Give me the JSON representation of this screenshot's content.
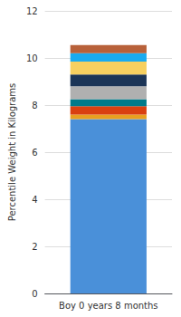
{
  "chart_data": {
    "type": "bar",
    "stacked": true,
    "categories": [
      "Boy 0 years 8 months"
    ],
    "series": [
      {
        "color": "#4A90D9",
        "values": [
          7.4
        ]
      },
      {
        "color": "#E8A020",
        "values": [
          0.2
        ]
      },
      {
        "color": "#D94010",
        "values": [
          0.35
        ]
      },
      {
        "color": "#007A8A",
        "values": [
          0.3
        ]
      },
      {
        "color": "#B0B0B0",
        "values": [
          0.55
        ]
      },
      {
        "color": "#1C3557",
        "values": [
          0.5
        ]
      },
      {
        "color": "#F7D060",
        "values": [
          0.55
        ]
      },
      {
        "color": "#1AABF0",
        "values": [
          0.35
        ]
      },
      {
        "color": "#B8613A",
        "values": [
          0.35
        ]
      }
    ],
    "ylabel": "Percentile Weight in Kilograms",
    "ylim": [
      0,
      12
    ],
    "yticks": [
      0,
      2,
      4,
      6,
      8,
      10,
      12
    ],
    "grid": true
  }
}
